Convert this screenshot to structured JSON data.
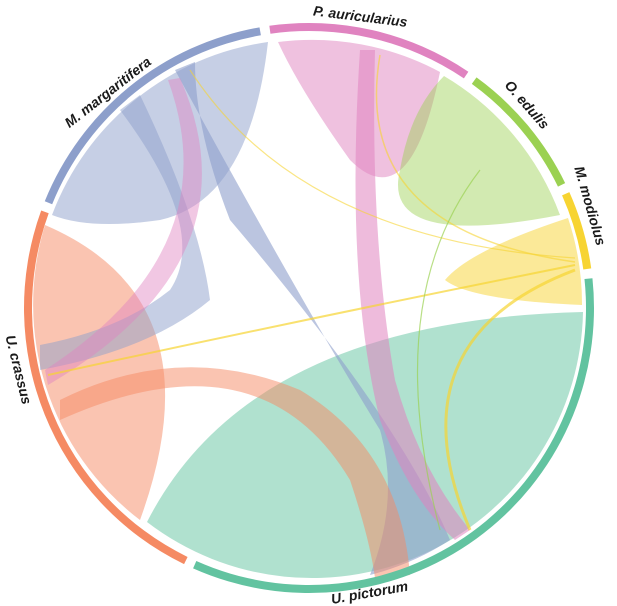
{
  "diagram": {
    "type": "chord",
    "groups": [
      {
        "id": "pa",
        "label": "P. auricularius",
        "color": "#e083c0"
      },
      {
        "id": "oe",
        "label": "O. edulis",
        "color": "#9bd152"
      },
      {
        "id": "mmo",
        "label": "M. modiolus",
        "color": "#f7d432"
      },
      {
        "id": "up",
        "label": "U. pictorum",
        "color": "#62c3a0"
      },
      {
        "id": "uc",
        "label": "U. crassus",
        "color": "#f58a63"
      },
      {
        "id": "mm",
        "label": "M. margaritifera",
        "color": "#8d9fcb"
      }
    ]
  }
}
